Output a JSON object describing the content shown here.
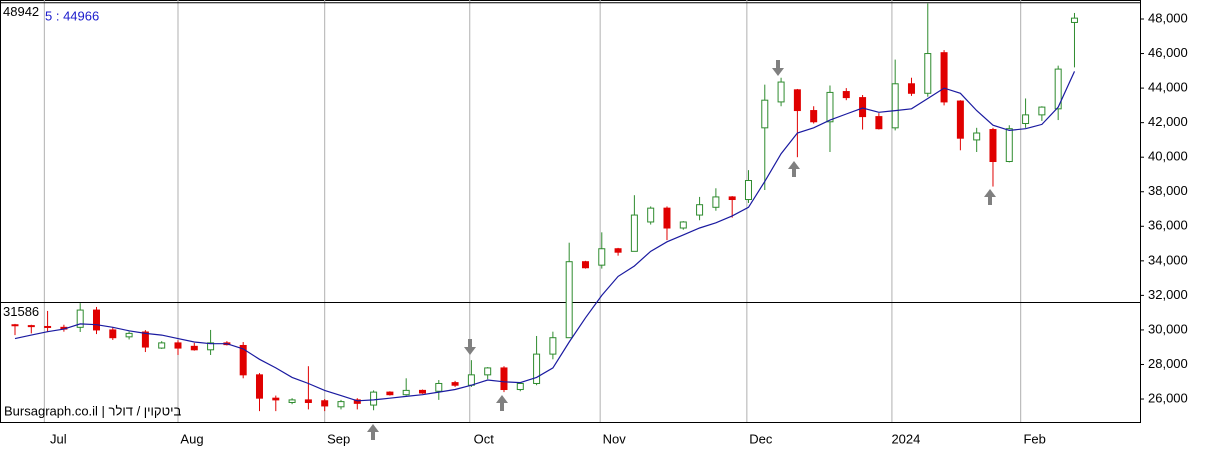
{
  "chart_data": {
    "type": "candlestick",
    "legend_label": "5 : 44966",
    "watermark": "Bursagraph.co.il | ביטקוין / דולר",
    "reference_lines": [
      48942,
      31586
    ],
    "up_color": "#2e8b2e",
    "down_color": "#e00000",
    "open": [
      30300,
      30250,
      30200,
      30150,
      30150,
      31150,
      30000,
      29600,
      29880,
      28950,
      29250,
      29050,
      28850,
      29250,
      29100,
      27400,
      26050,
      25800,
      25950,
      25900,
      25550,
      25950,
      25650,
      26400,
      26250,
      26500,
      26450,
      26950,
      26800,
      27400,
      27800,
      26550,
      26900,
      28600,
      29550,
      33950,
      33750,
      34700,
      34550,
      36250,
      37050,
      35900,
      36650,
      37100,
      37700,
      37550,
      41700,
      43200,
      43900,
      42700,
      42050,
      43800,
      43450,
      42350,
      41700,
      44250,
      43700,
      46050,
      43250,
      41000,
      41600,
      39750,
      41950,
      42450,
      42800,
      47800
    ],
    "high": [
      30350,
      30300,
      31100,
      30300,
      31550,
      31330,
      30170,
      29900,
      29990,
      29350,
      29400,
      29250,
      30000,
      29350,
      29300,
      27500,
      26200,
      26050,
      27900,
      26000,
      25950,
      26050,
      26500,
      26450,
      27200,
      26550,
      27100,
      27050,
      28250,
      27850,
      27900,
      26950,
      29650,
      29900,
      35050,
      34000,
      35650,
      34750,
      37800,
      37150,
      37150,
      36300,
      37700,
      38200,
      37750,
      39250,
      44200,
      44600,
      43950,
      42950,
      44150,
      44000,
      43600,
      42550,
      45650,
      44600,
      48900,
      46200,
      43300,
      41700,
      41700,
      41850,
      43400,
      42950,
      45300,
      48350
    ],
    "low": [
      29700,
      29800,
      29900,
      29900,
      29880,
      29760,
      29420,
      29450,
      28720,
      28900,
      28550,
      28800,
      28550,
      29100,
      27200,
      25300,
      25300,
      25700,
      25400,
      25300,
      25400,
      25400,
      25350,
      26200,
      26200,
      26300,
      25950,
      26700,
      26700,
      27150,
      26400,
      26450,
      26800,
      28300,
      29550,
      33550,
      33550,
      34300,
      34550,
      36100,
      35200,
      35800,
      36350,
      36900,
      36500,
      37350,
      38100,
      42950,
      40000,
      41950,
      40300,
      43300,
      41600,
      41600,
      41550,
      43550,
      43500,
      43000,
      40400,
      40300,
      38300,
      39700,
      41700,
      42100,
      42150,
      45200
    ],
    "close": [
      30250,
      30200,
      30150,
      30050,
      31150,
      30000,
      29550,
      29800,
      29010,
      29250,
      28950,
      28850,
      29250,
      29150,
      27400,
      26050,
      25950,
      25950,
      25800,
      25600,
      25850,
      25750,
      26400,
      26250,
      26500,
      26350,
      26900,
      26800,
      27400,
      27800,
      26550,
      26900,
      28600,
      29550,
      33950,
      33600,
      34700,
      34500,
      36650,
      37050,
      35900,
      36250,
      37250,
      37700,
      37550,
      38650,
      43300,
      44350,
      42700,
      42050,
      43750,
      43450,
      42350,
      41650,
      44250,
      43700,
      46000,
      43200,
      41100,
      41400,
      39750,
      41650,
      42450,
      42900,
      45100,
      48050
    ],
    "ma": {
      "name": "5",
      "color": "#1a1aa0",
      "values": [
        29500,
        29700,
        29900,
        30050,
        30350,
        30300,
        30150,
        29950,
        29800,
        29700,
        29500,
        29300,
        29200,
        29200,
        28900,
        28300,
        27800,
        27250,
        26900,
        26500,
        26200,
        25900,
        25950,
        26050,
        26150,
        26250,
        26400,
        26550,
        26800,
        27100,
        27000,
        26950,
        27250,
        27800,
        29300,
        30700,
        32000,
        33100,
        33700,
        34550,
        35100,
        35500,
        35900,
        36200,
        36600,
        37100,
        38600,
        40200,
        41400,
        41700,
        42150,
        42500,
        42850,
        42600,
        42700,
        42800,
        43400,
        44000,
        43700,
        42700,
        41850,
        41550,
        41650,
        41900,
        42900,
        44966
      ]
    },
    "xlim": [
      -0.92,
      69.02
    ],
    "xticks": [
      {
        "value": 1.8,
        "label": "Jul"
      },
      {
        "value": 10.0,
        "label": "Aug"
      },
      {
        "value": 19.0,
        "label": "Sep"
      },
      {
        "value": 27.9,
        "label": "Oct"
      },
      {
        "value": 35.9,
        "label": "Nov"
      },
      {
        "value": 44.9,
        "label": "Dec"
      },
      {
        "value": 53.8,
        "label": "2024"
      },
      {
        "value": 61.7,
        "label": "Feb"
      }
    ],
    "ylim": [
      24670,
      49100
    ],
    "yticks": [
      {
        "value": 26000,
        "label": "26,000"
      },
      {
        "value": 28000,
        "label": "28,000"
      },
      {
        "value": 30000,
        "label": "30,000"
      },
      {
        "value": 32000,
        "label": "32,000"
      },
      {
        "value": 34000,
        "label": "34,000"
      },
      {
        "value": 36000,
        "label": "36,000"
      },
      {
        "value": 38000,
        "label": "38,000"
      },
      {
        "value": 40000,
        "label": "40,000"
      },
      {
        "value": 42000,
        "label": "42,000"
      },
      {
        "value": 44000,
        "label": "44,000"
      },
      {
        "value": 46000,
        "label": "46,000"
      },
      {
        "value": 48000,
        "label": "48,000"
      }
    ]
  }
}
